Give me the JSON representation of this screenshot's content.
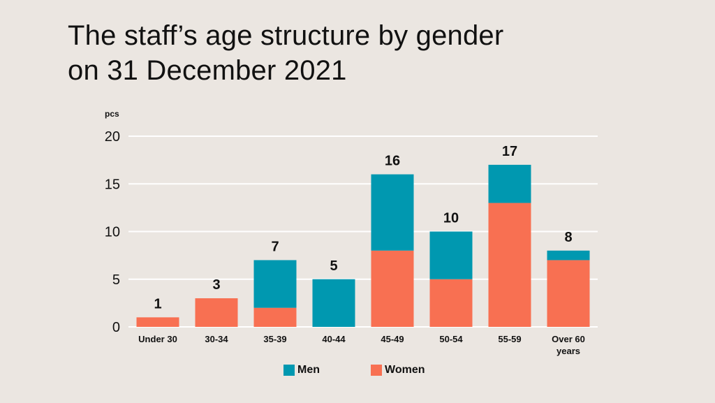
{
  "title_lines": [
    "The staff’s age structure by gender",
    "on 31 December 2021"
  ],
  "colors": {
    "men": "#0098b0",
    "women": "#f87052",
    "grid": "#ffffff",
    "background": "#ebe6e1",
    "text": "#111111"
  },
  "chart_data": {
    "type": "bar",
    "stacked": true,
    "title": "The staff’s age structure by gender on 31 December 2021",
    "ylabel": "pcs",
    "xlabel": "",
    "ylim": [
      0,
      20
    ],
    "yticks": [
      0,
      5,
      10,
      15,
      20
    ],
    "grid": true,
    "legend_position": "bottom",
    "categories": [
      "Under 30",
      "30-34",
      "35-39",
      "40-44",
      "45-49",
      "50-54",
      "55-59",
      "Over 60 years"
    ],
    "category_lines": [
      [
        "Under 30"
      ],
      [
        "30-34"
      ],
      [
        "35-39"
      ],
      [
        "40-44"
      ],
      [
        "45-49"
      ],
      [
        "50-54"
      ],
      [
        "55-59"
      ],
      [
        "Over 60",
        "years"
      ]
    ],
    "series": [
      {
        "name": "Women",
        "values": [
          1,
          3,
          2,
          0,
          8,
          5,
          13,
          7
        ]
      },
      {
        "name": "Men",
        "values": [
          0,
          0,
          5,
          5,
          8,
          5,
          4,
          1
        ]
      }
    ],
    "totals": [
      1,
      3,
      7,
      5,
      16,
      10,
      17,
      8
    ]
  },
  "legend": [
    {
      "key": "men",
      "label": "Men"
    },
    {
      "key": "women",
      "label": "Women"
    }
  ]
}
